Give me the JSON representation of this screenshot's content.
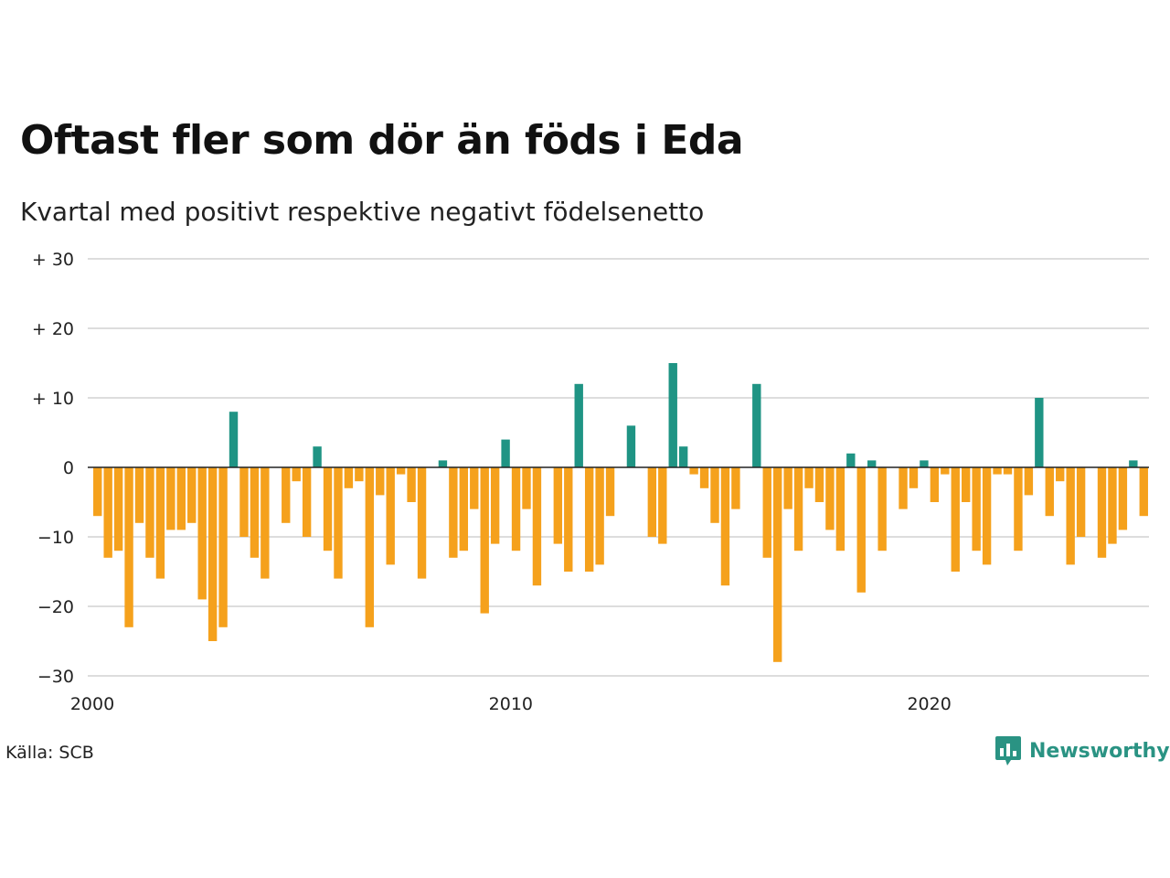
{
  "header": {
    "title": "Oftast fler som dör än föds i Eda",
    "subtitle": "Kvartal med positivt respektive negativt födelsenetto"
  },
  "footer": {
    "source": "Källa: SCB",
    "brand": "Newsworthy",
    "brand_icon": "newsworthy-logo-icon"
  },
  "colors": {
    "positive": "#1f9484",
    "negative": "#f5a11c",
    "grid": "#dddddd",
    "zero_line": "#222222"
  },
  "chart_data": {
    "type": "bar",
    "title": "Oftast fler som dör än föds i Eda",
    "subtitle": "Kvartal med positivt respektive negativt födelsenetto",
    "xlabel": "",
    "ylabel": "",
    "ylim": [
      -30,
      30
    ],
    "yticks": [
      30,
      20,
      10,
      0,
      -10,
      -20,
      -30
    ],
    "ytick_labels": [
      "+ 30",
      "+ 20",
      "+ 10",
      "0",
      "−10",
      "−20",
      "−30"
    ],
    "xlim": [
      2000,
      2025.25
    ],
    "xticks": [
      2000,
      2010,
      2020
    ],
    "xtick_labels": [
      "2000",
      "2010",
      "2020"
    ],
    "grid": true,
    "legend": "none",
    "categories": [
      "2000 Q1",
      "2000 Q2",
      "2000 Q3",
      "2000 Q4",
      "2001 Q1",
      "2001 Q2",
      "2001 Q3",
      "2001 Q4",
      "2002 Q1",
      "2002 Q2",
      "2002 Q3",
      "2002 Q4",
      "2003 Q1",
      "2003 Q2",
      "2003 Q3",
      "2003 Q4",
      "2004 Q1",
      "2004 Q2",
      "2004 Q3",
      "2004 Q4",
      "2005 Q1",
      "2005 Q2",
      "2005 Q3",
      "2005 Q4",
      "2006 Q1",
      "2006 Q2",
      "2006 Q3",
      "2006 Q4",
      "2007 Q1",
      "2007 Q2",
      "2007 Q3",
      "2007 Q4",
      "2008 Q1",
      "2008 Q2",
      "2008 Q3",
      "2008 Q4",
      "2009 Q1",
      "2009 Q2",
      "2009 Q3",
      "2009 Q4",
      "2010 Q1",
      "2010 Q2",
      "2010 Q3",
      "2010 Q4",
      "2011 Q1",
      "2011 Q2",
      "2011 Q3",
      "2011 Q4",
      "2012 Q1",
      "2012 Q2",
      "2012 Q3",
      "2012 Q4",
      "2013 Q1",
      "2013 Q2",
      "2013 Q3",
      "2013 Q4",
      "2014 Q1",
      "2014 Q2",
      "2014 Q3",
      "2014 Q4",
      "2015 Q1",
      "2015 Q2",
      "2015 Q3",
      "2015 Q4",
      "2016 Q1",
      "2016 Q2",
      "2016 Q3",
      "2016 Q4",
      "2017 Q1",
      "2017 Q2",
      "2017 Q3",
      "2017 Q4",
      "2018 Q1",
      "2018 Q2",
      "2018 Q3",
      "2018 Q4",
      "2019 Q1",
      "2019 Q2",
      "2019 Q3",
      "2019 Q4",
      "2020 Q1",
      "2020 Q2",
      "2020 Q3",
      "2020 Q4",
      "2021 Q1",
      "2021 Q2",
      "2021 Q3",
      "2021 Q4",
      "2022 Q1",
      "2022 Q2",
      "2022 Q3",
      "2022 Q4",
      "2023 Q1",
      "2023 Q2",
      "2023 Q3",
      "2023 Q4",
      "2024 Q1",
      "2024 Q2",
      "2024 Q3",
      "2024 Q4",
      "2025 Q1"
    ],
    "values": [
      -7,
      -13,
      -12,
      -23,
      -8,
      -13,
      -16,
      -9,
      -9,
      -8,
      -19,
      -25,
      -23,
      8,
      -10,
      -13,
      -16,
      0,
      -8,
      -2,
      -10,
      3,
      -12,
      -16,
      -3,
      -2,
      -23,
      -4,
      -14,
      -1,
      -5,
      -16,
      0,
      1,
      -13,
      -12,
      -6,
      -21,
      -11,
      4,
      -12,
      -6,
      -17,
      0,
      -11,
      -15,
      12,
      -15,
      -14,
      -7,
      0,
      6,
      0,
      -10,
      -11,
      15,
      3,
      -1,
      -3,
      -8,
      -17,
      -6,
      0,
      12,
      -13,
      -28,
      -6,
      -12,
      -3,
      -5,
      -9,
      -12,
      2,
      -18,
      1,
      -12,
      0,
      -6,
      -3,
      1,
      -5,
      -1,
      -15,
      -5,
      -12,
      -14,
      -1,
      -1,
      -12,
      -4,
      10,
      -7,
      -2,
      -14,
      -10,
      0,
      -13,
      -11,
      -9,
      1,
      -7
    ]
  }
}
